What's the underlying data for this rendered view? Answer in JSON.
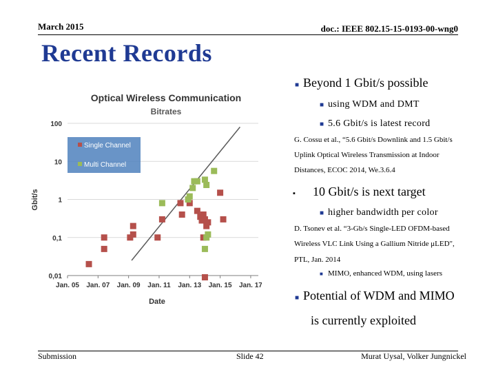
{
  "header": {
    "date": "March 2015",
    "doc": "doc.: IEEE 802.15-15-0193-00-wng0"
  },
  "title": "Recent Records",
  "bullets": {
    "b1": "Beyond 1 Gbit/s possible",
    "b1_1": "using WDM and DMT",
    "b1_2": "5.6 Gbit/s is latest record",
    "ref1_l1": "G. Cossu et al., “5.6 Gbit/s Downlink and 1.5 Gbit/s",
    "ref1_l2": "Uplink Optical Wireless Transmission at Indoor",
    "ref1_l3": "Distances, ECOC 2014, We.3.6.4",
    "b2": "10 Gbit/s is next target",
    "b2_1": "higher bandwidth per color",
    "ref2_l1": "D. Tsonev et al. “3-Gb/s Single-LED OFDM-based",
    "ref2_l2": "Wireless VLC Link Using a Gallium Nitride μLED\",",
    "ref2_l3": "PTL, Jan. 2014",
    "b2_2": "MIMO, enhanced WDM, using lasers",
    "b3_l1": "Potential of WDM and MIMO",
    "b3_l2": "is currently exploited"
  },
  "footer": {
    "left": "Submission",
    "center": "Slide 42",
    "right": "Murat Uysal, Volker Jungnickel"
  },
  "colors": {
    "title": "#1f3a93",
    "single": "#b5504b",
    "multi": "#9bbb59",
    "legend_bg": "#4f81bd",
    "trend": "#5a5a5a"
  },
  "chart_data": {
    "type": "scatter",
    "title": "Optical Wireless Communication",
    "subtitle": "Bitrates",
    "xlabel": "Date",
    "ylabel": "Gbit/s",
    "yscale": "log",
    "ylim": [
      0.01,
      100
    ],
    "yticks": [
      100,
      10,
      1,
      0.1,
      0.01
    ],
    "ytick_labels": [
      "100",
      "10",
      "1",
      "0,1",
      "0,01"
    ],
    "xlim": [
      2005,
      2017.5
    ],
    "xticks": [
      2005,
      2007,
      2009,
      2011,
      2013,
      2015,
      2017
    ],
    "xtick_labels": [
      "Jan. 05",
      "Jan. 07",
      "Jan. 09",
      "Jan. 11",
      "Jan. 13",
      "Jan. 15",
      "Jan. 17"
    ],
    "legend_position": "top-left",
    "trend": [
      [
        2009.2,
        0.025
      ],
      [
        2016.3,
        80
      ]
    ],
    "series": [
      {
        "name": "Single Channel",
        "points": [
          [
            2006.4,
            0.02
          ],
          [
            2007.4,
            0.1
          ],
          [
            2007.4,
            0.05
          ],
          [
            2009.1,
            0.1
          ],
          [
            2009.3,
            0.2
          ],
          [
            2009.3,
            0.12
          ],
          [
            2010.9,
            0.1
          ],
          [
            2011.2,
            0.3
          ],
          [
            2012.4,
            0.8
          ],
          [
            2012.5,
            0.4
          ],
          [
            2013.0,
            0.8
          ],
          [
            2013.5,
            0.5
          ],
          [
            2013.7,
            0.35
          ],
          [
            2013.8,
            0.28
          ],
          [
            2013.9,
            0.4
          ],
          [
            2014.0,
            0.3
          ],
          [
            2014.1,
            0.2
          ],
          [
            2014.2,
            0.25
          ],
          [
            2013.9,
            0.1
          ],
          [
            2014.0,
            0.009
          ],
          [
            2015.0,
            1.5
          ],
          [
            2015.2,
            0.3
          ]
        ]
      },
      {
        "name": "Multi Channel",
        "points": [
          [
            2011.2,
            0.8
          ],
          [
            2012.9,
            1.0
          ],
          [
            2013.2,
            2.0
          ],
          [
            2013.3,
            3.0
          ],
          [
            2013.5,
            3.0
          ],
          [
            2013.0,
            1.2
          ],
          [
            2014.0,
            3.3
          ],
          [
            2014.1,
            2.4
          ],
          [
            2014.6,
            5.6
          ],
          [
            2014.1,
            0.1
          ],
          [
            2014.2,
            0.12
          ],
          [
            2014.0,
            0.05
          ]
        ]
      }
    ]
  }
}
